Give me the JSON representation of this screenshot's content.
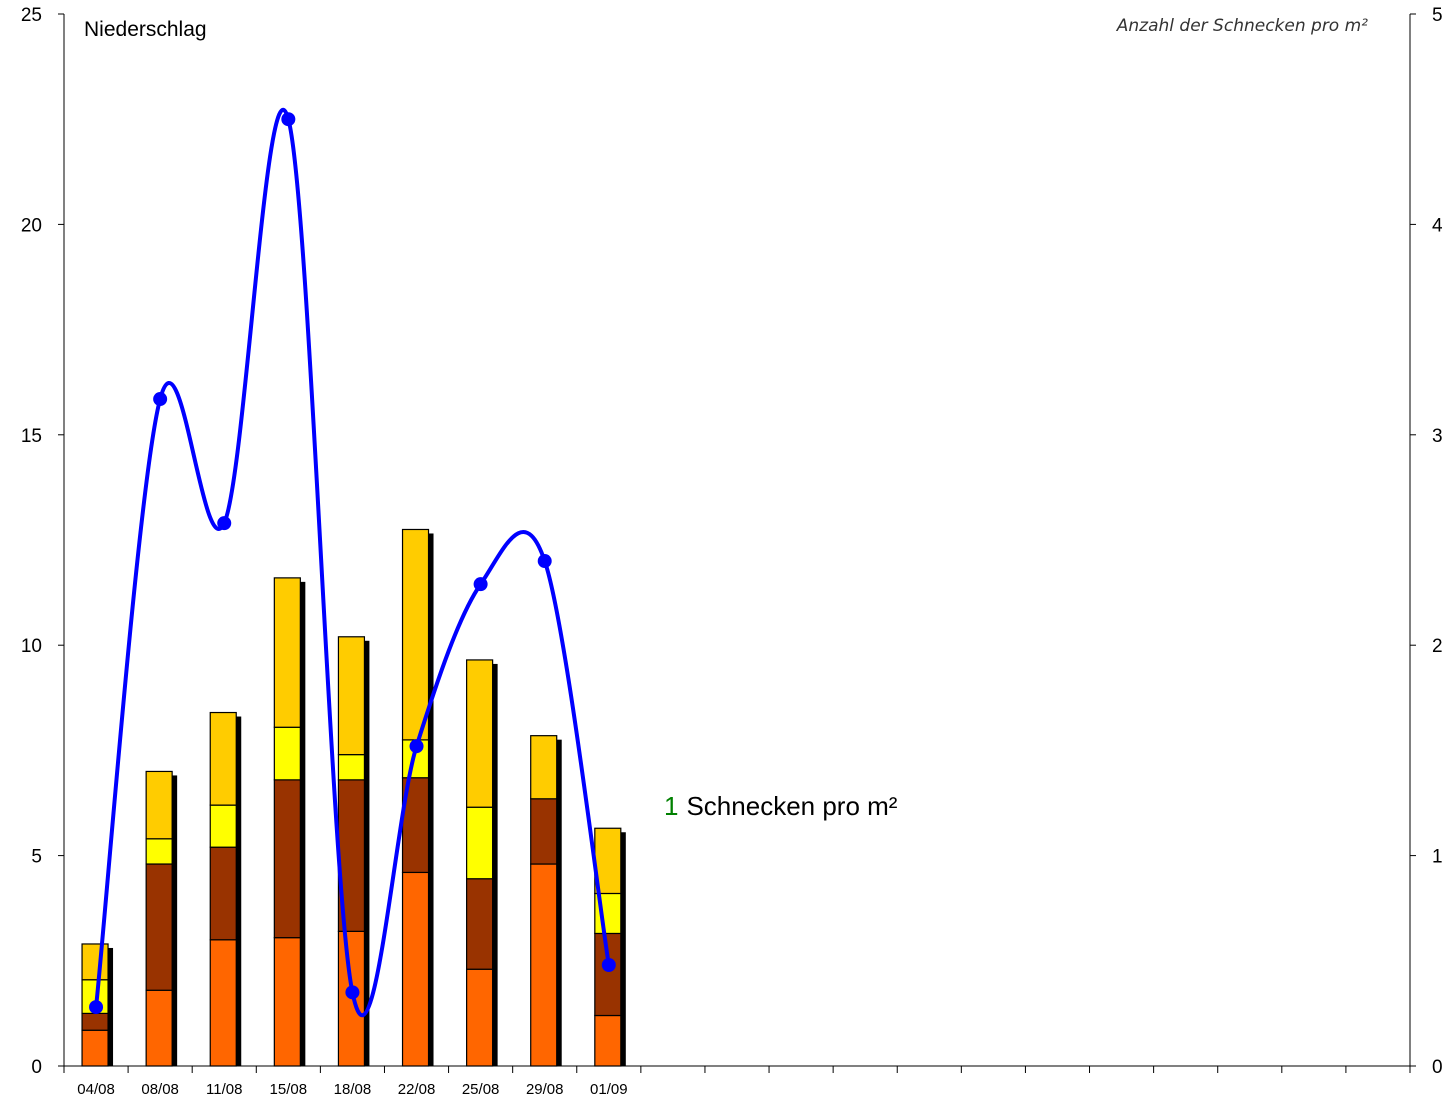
{
  "chart_data": {
    "type": "bar",
    "subtype": "stacked bar with line on secondary axis",
    "categories": [
      "04/08",
      "08/08",
      "11/08",
      "15/08",
      "18/08",
      "22/08",
      "25/08",
      "29/08",
      "01/09"
    ],
    "ylabel": "Niederschlag",
    "ylim": [
      0,
      25
    ],
    "yticks": [
      "0",
      "5",
      "10",
      "15",
      "20",
      "25"
    ],
    "y2label": "Anzahl der Schnecken pro m²",
    "y2lim": [
      0,
      5
    ],
    "y2ticks": [
      "0",
      "1",
      "2",
      "3",
      "4",
      "5"
    ],
    "x_total_slots": 21,
    "series": [
      {
        "values": [
          0.85,
          1.8,
          3.0,
          3.05,
          3.2,
          4.6,
          2.3,
          4.8,
          1.2
        ],
        "color": "#ff6600",
        "kind": "bar"
      },
      {
        "values": [
          0.4,
          3.0,
          2.2,
          3.75,
          3.6,
          2.25,
          2.15,
          1.55,
          1.95
        ],
        "color": "#993300",
        "kind": "bar"
      },
      {
        "values": [
          0.8,
          0.6,
          1.0,
          1.25,
          0.6,
          0.9,
          1.7,
          0.0,
          0.95
        ],
        "color": "#ffff00",
        "kind": "bar"
      },
      {
        "values": [
          0.85,
          1.6,
          2.2,
          3.55,
          2.8,
          5.0,
          3.5,
          1.5,
          1.55
        ],
        "color": "#ffcc00",
        "kind": "bar"
      },
      {
        "values": [
          0.28,
          3.17,
          2.58,
          4.5,
          0.35,
          1.52,
          2.29,
          2.4,
          0.48
        ],
        "color": "#0000ff",
        "kind": "line",
        "axis": "right"
      }
    ],
    "annotation": {
      "number": "1",
      "text": "Schnecken pro m²",
      "number_color": "#008000"
    },
    "grid": false,
    "legend": "none"
  }
}
